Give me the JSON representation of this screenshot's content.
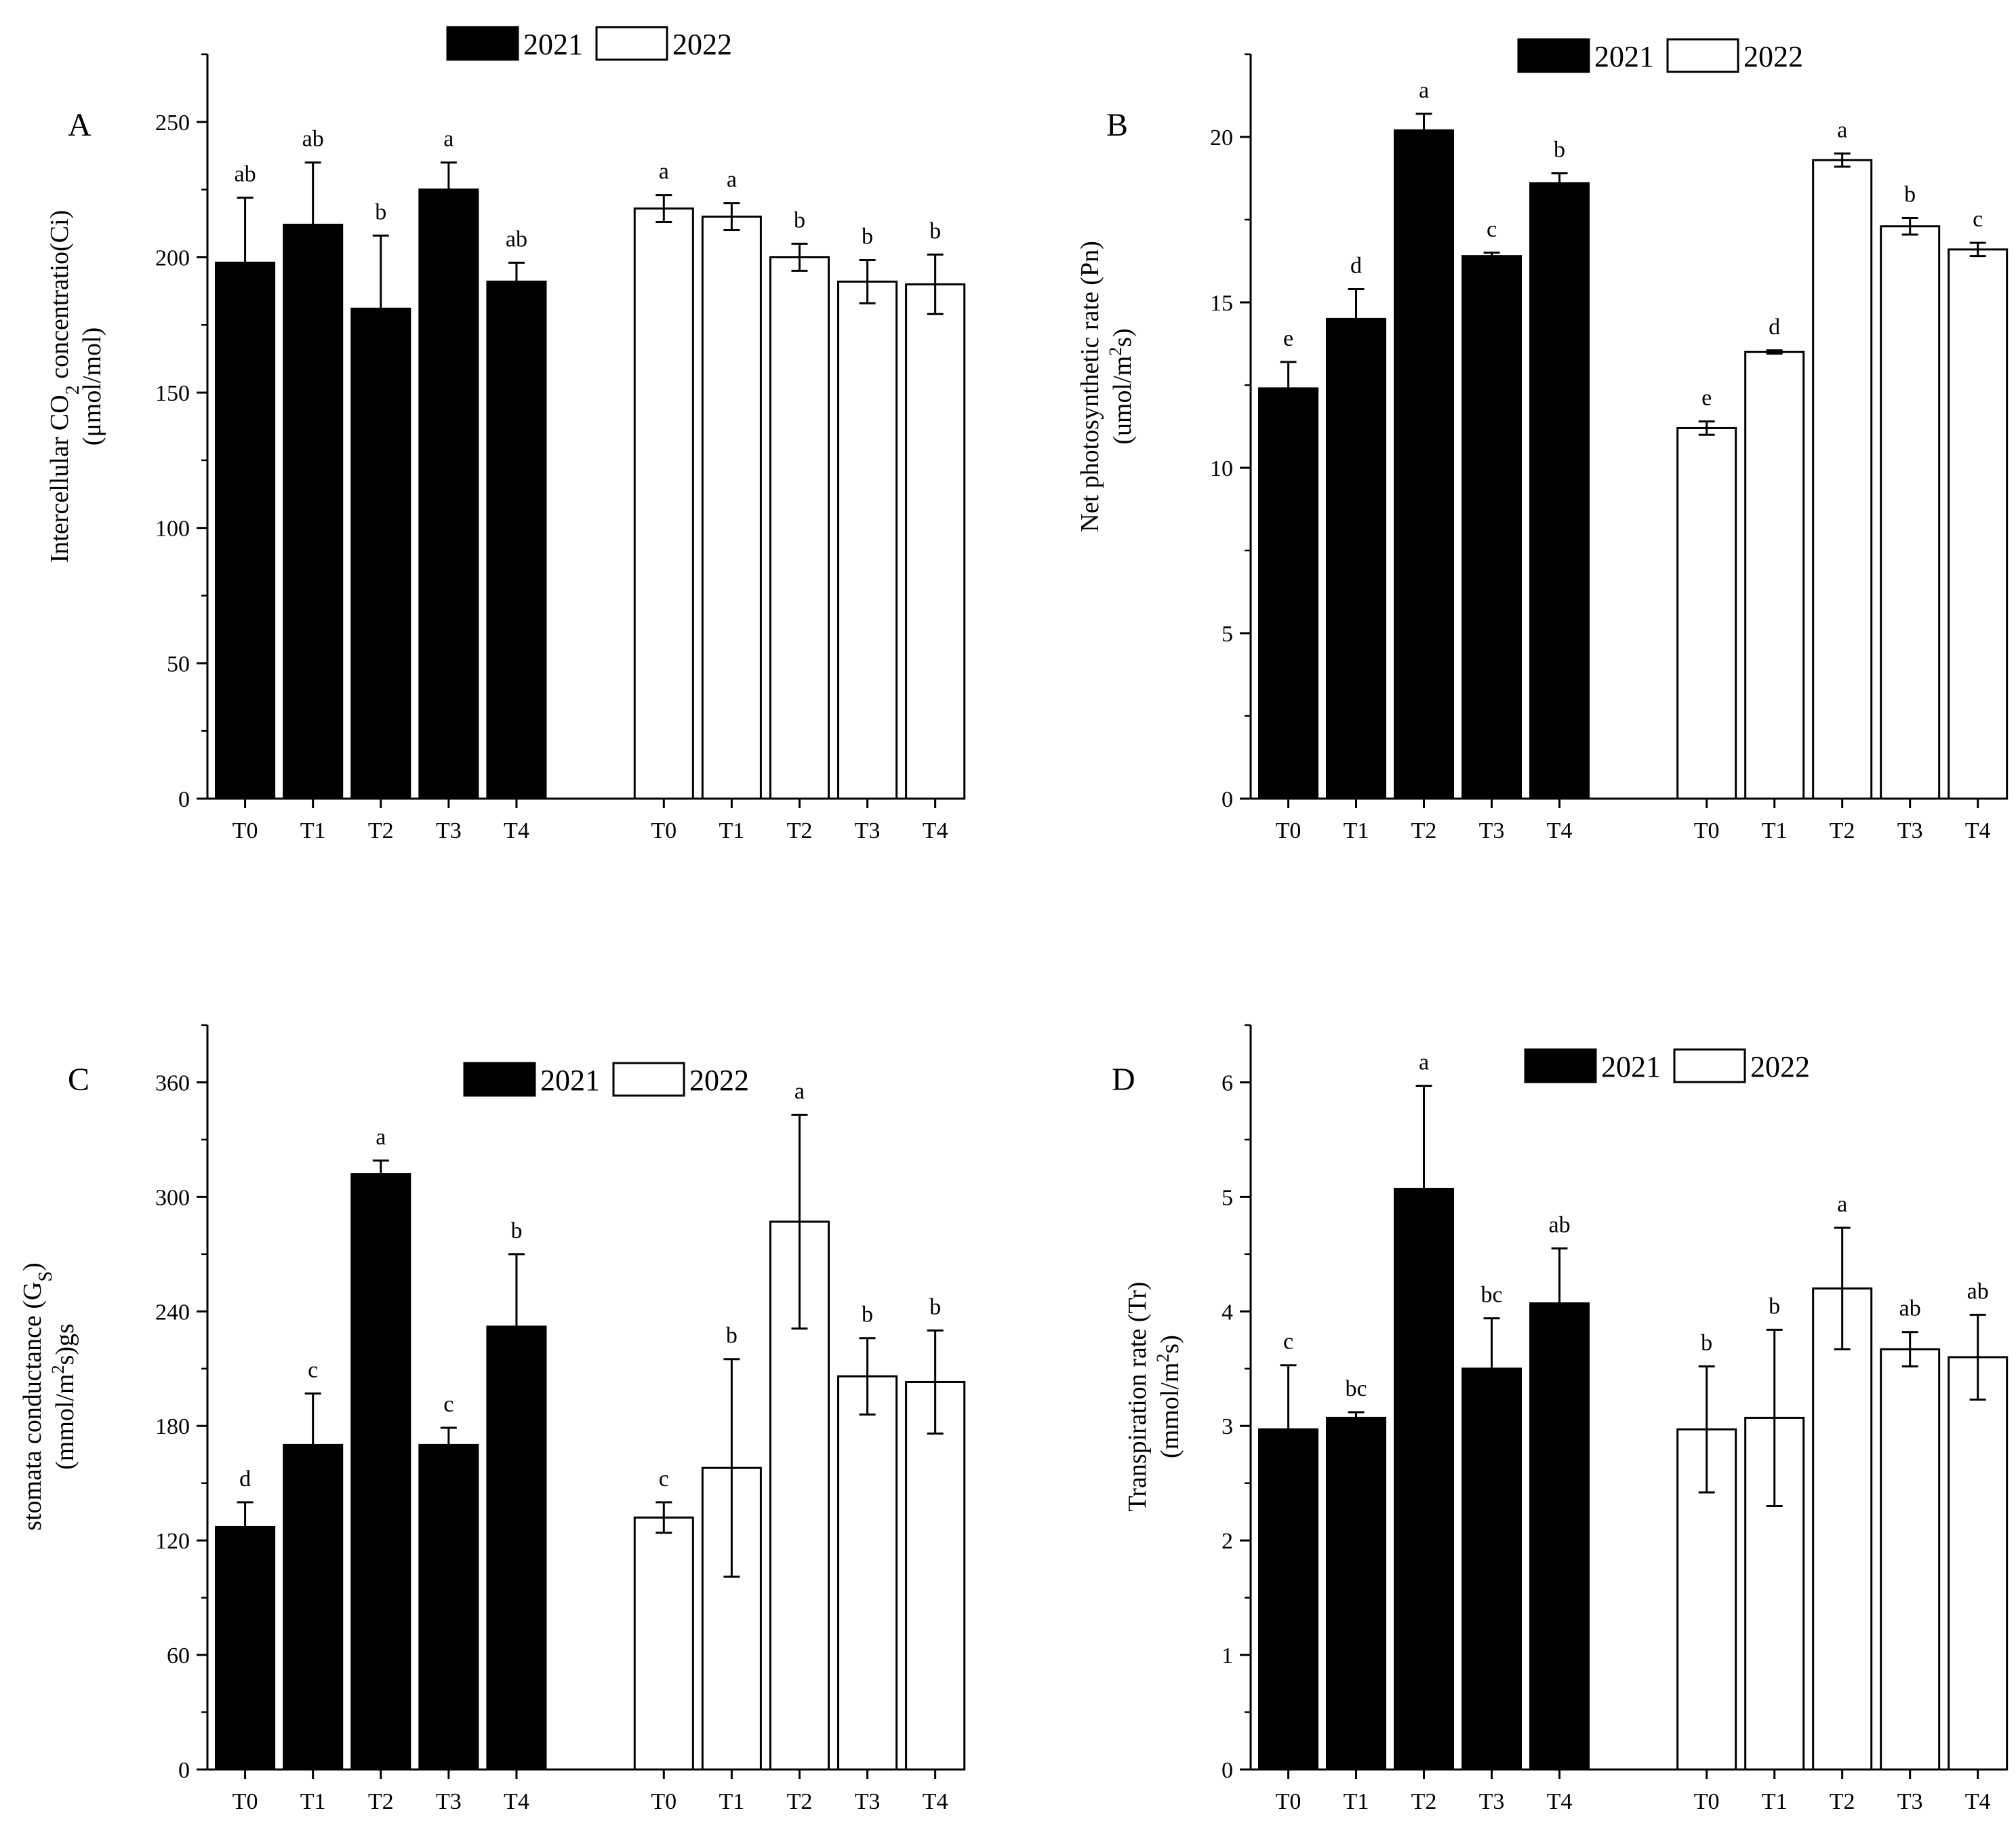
{
  "chart_data": [
    {
      "panel": "A",
      "type": "bar",
      "ylabel_line1_pre": "Intercellular CO",
      "ylabel_line1_sub": "2",
      "ylabel_line1_post": " concentratio(Ci)",
      "ylabel_line2": "(μmol/mol)",
      "ylim": [
        0,
        275
      ],
      "yticks": [
        0,
        50,
        100,
        150,
        200,
        250
      ],
      "legend_position": "top-center",
      "categories": [
        "T0",
        "T1",
        "T2",
        "T3",
        "T4"
      ],
      "series": [
        {
          "name": "2021",
          "color": "#000000",
          "values": [
            198,
            212,
            181,
            225,
            191
          ],
          "errors": [
            24,
            23,
            27,
            10,
            7
          ],
          "letters": [
            "ab",
            "ab",
            "b",
            "a",
            "ab"
          ]
        },
        {
          "name": "2022",
          "color": "#ffffff",
          "values": [
            218,
            215,
            200,
            191,
            190
          ],
          "errors": [
            5,
            5,
            5,
            8,
            11
          ],
          "letters": [
            "a",
            "a",
            "b",
            "b",
            "b"
          ]
        }
      ]
    },
    {
      "panel": "B",
      "type": "bar",
      "ylabel_line1": "Net photosynthetic rate (Pn)",
      "ylabel_line2_pre": "(umol/m",
      "ylabel_line2_sup": "2",
      "ylabel_line2_post": "s)",
      "ylim": [
        0,
        22.5
      ],
      "yticks": [
        0,
        5,
        10,
        15,
        20
      ],
      "legend_position": "top-center",
      "categories": [
        "T0",
        "T1",
        "T2",
        "T3",
        "T4"
      ],
      "series": [
        {
          "name": "2021",
          "color": "#000000",
          "values": [
            12.4,
            14.5,
            20.2,
            16.4,
            18.6
          ],
          "errors": [
            0.8,
            0.9,
            0.5,
            0.1,
            0.3
          ],
          "letters": [
            "e",
            "d",
            "a",
            "c",
            "b"
          ]
        },
        {
          "name": "2022",
          "color": "#ffffff",
          "values": [
            11.2,
            13.5,
            19.3,
            17.3,
            16.6
          ],
          "errors": [
            0.2,
            0.05,
            0.2,
            0.25,
            0.2
          ],
          "letters": [
            "e",
            "d",
            "a",
            "b",
            "c"
          ]
        }
      ]
    },
    {
      "panel": "C",
      "type": "bar",
      "ylabel_line1_pre": "stomata conductance (G",
      "ylabel_line1_sub": "S",
      "ylabel_line1_post": ")",
      "ylabel_line2_pre": "(mmol/m",
      "ylabel_line2_sup": "2",
      "ylabel_line2_post": "s)gs",
      "ylim": [
        0,
        390
      ],
      "yticks": [
        0,
        60,
        120,
        180,
        240,
        300,
        360
      ],
      "legend_position": "top-center",
      "categories": [
        "T0",
        "T1",
        "T2",
        "T3",
        "T4"
      ],
      "series": [
        {
          "name": "2021",
          "color": "#000000",
          "values": [
            127,
            170,
            312,
            170,
            232
          ],
          "errors": [
            13,
            27,
            7,
            9,
            38
          ],
          "letters": [
            "d",
            "c",
            "a",
            "c",
            "b"
          ]
        },
        {
          "name": "2022",
          "color": "#ffffff",
          "values": [
            132,
            158,
            287,
            206,
            203
          ],
          "errors": [
            8,
            57,
            56,
            20,
            27
          ],
          "letters": [
            "c",
            "b",
            "a",
            "b",
            "b"
          ]
        }
      ]
    },
    {
      "panel": "D",
      "type": "bar",
      "ylabel_line1": "Transpiration rate (Tr)",
      "ylabel_line2_pre": "(mmol/m",
      "ylabel_line2_sup": "2",
      "ylabel_line2_post": "s)",
      "ylim": [
        0,
        6.5
      ],
      "yticks": [
        0,
        1,
        2,
        3,
        4,
        5,
        6
      ],
      "legend_position": "top-center",
      "categories": [
        "T0",
        "T1",
        "T2",
        "T3",
        "T4"
      ],
      "series": [
        {
          "name": "2021",
          "color": "#000000",
          "values": [
            2.97,
            3.07,
            5.07,
            3.5,
            4.07
          ],
          "errors": [
            0.56,
            0.05,
            0.9,
            0.44,
            0.48
          ],
          "letters": [
            "c",
            "bc",
            "a",
            "bc",
            "ab"
          ]
        },
        {
          "name": "2022",
          "color": "#ffffff",
          "values": [
            2.97,
            3.07,
            4.2,
            3.67,
            3.6
          ],
          "errors": [
            0.55,
            0.77,
            0.53,
            0.15,
            0.37
          ],
          "letters": [
            "b",
            "b",
            "a",
            "ab",
            "ab"
          ]
        }
      ]
    }
  ]
}
